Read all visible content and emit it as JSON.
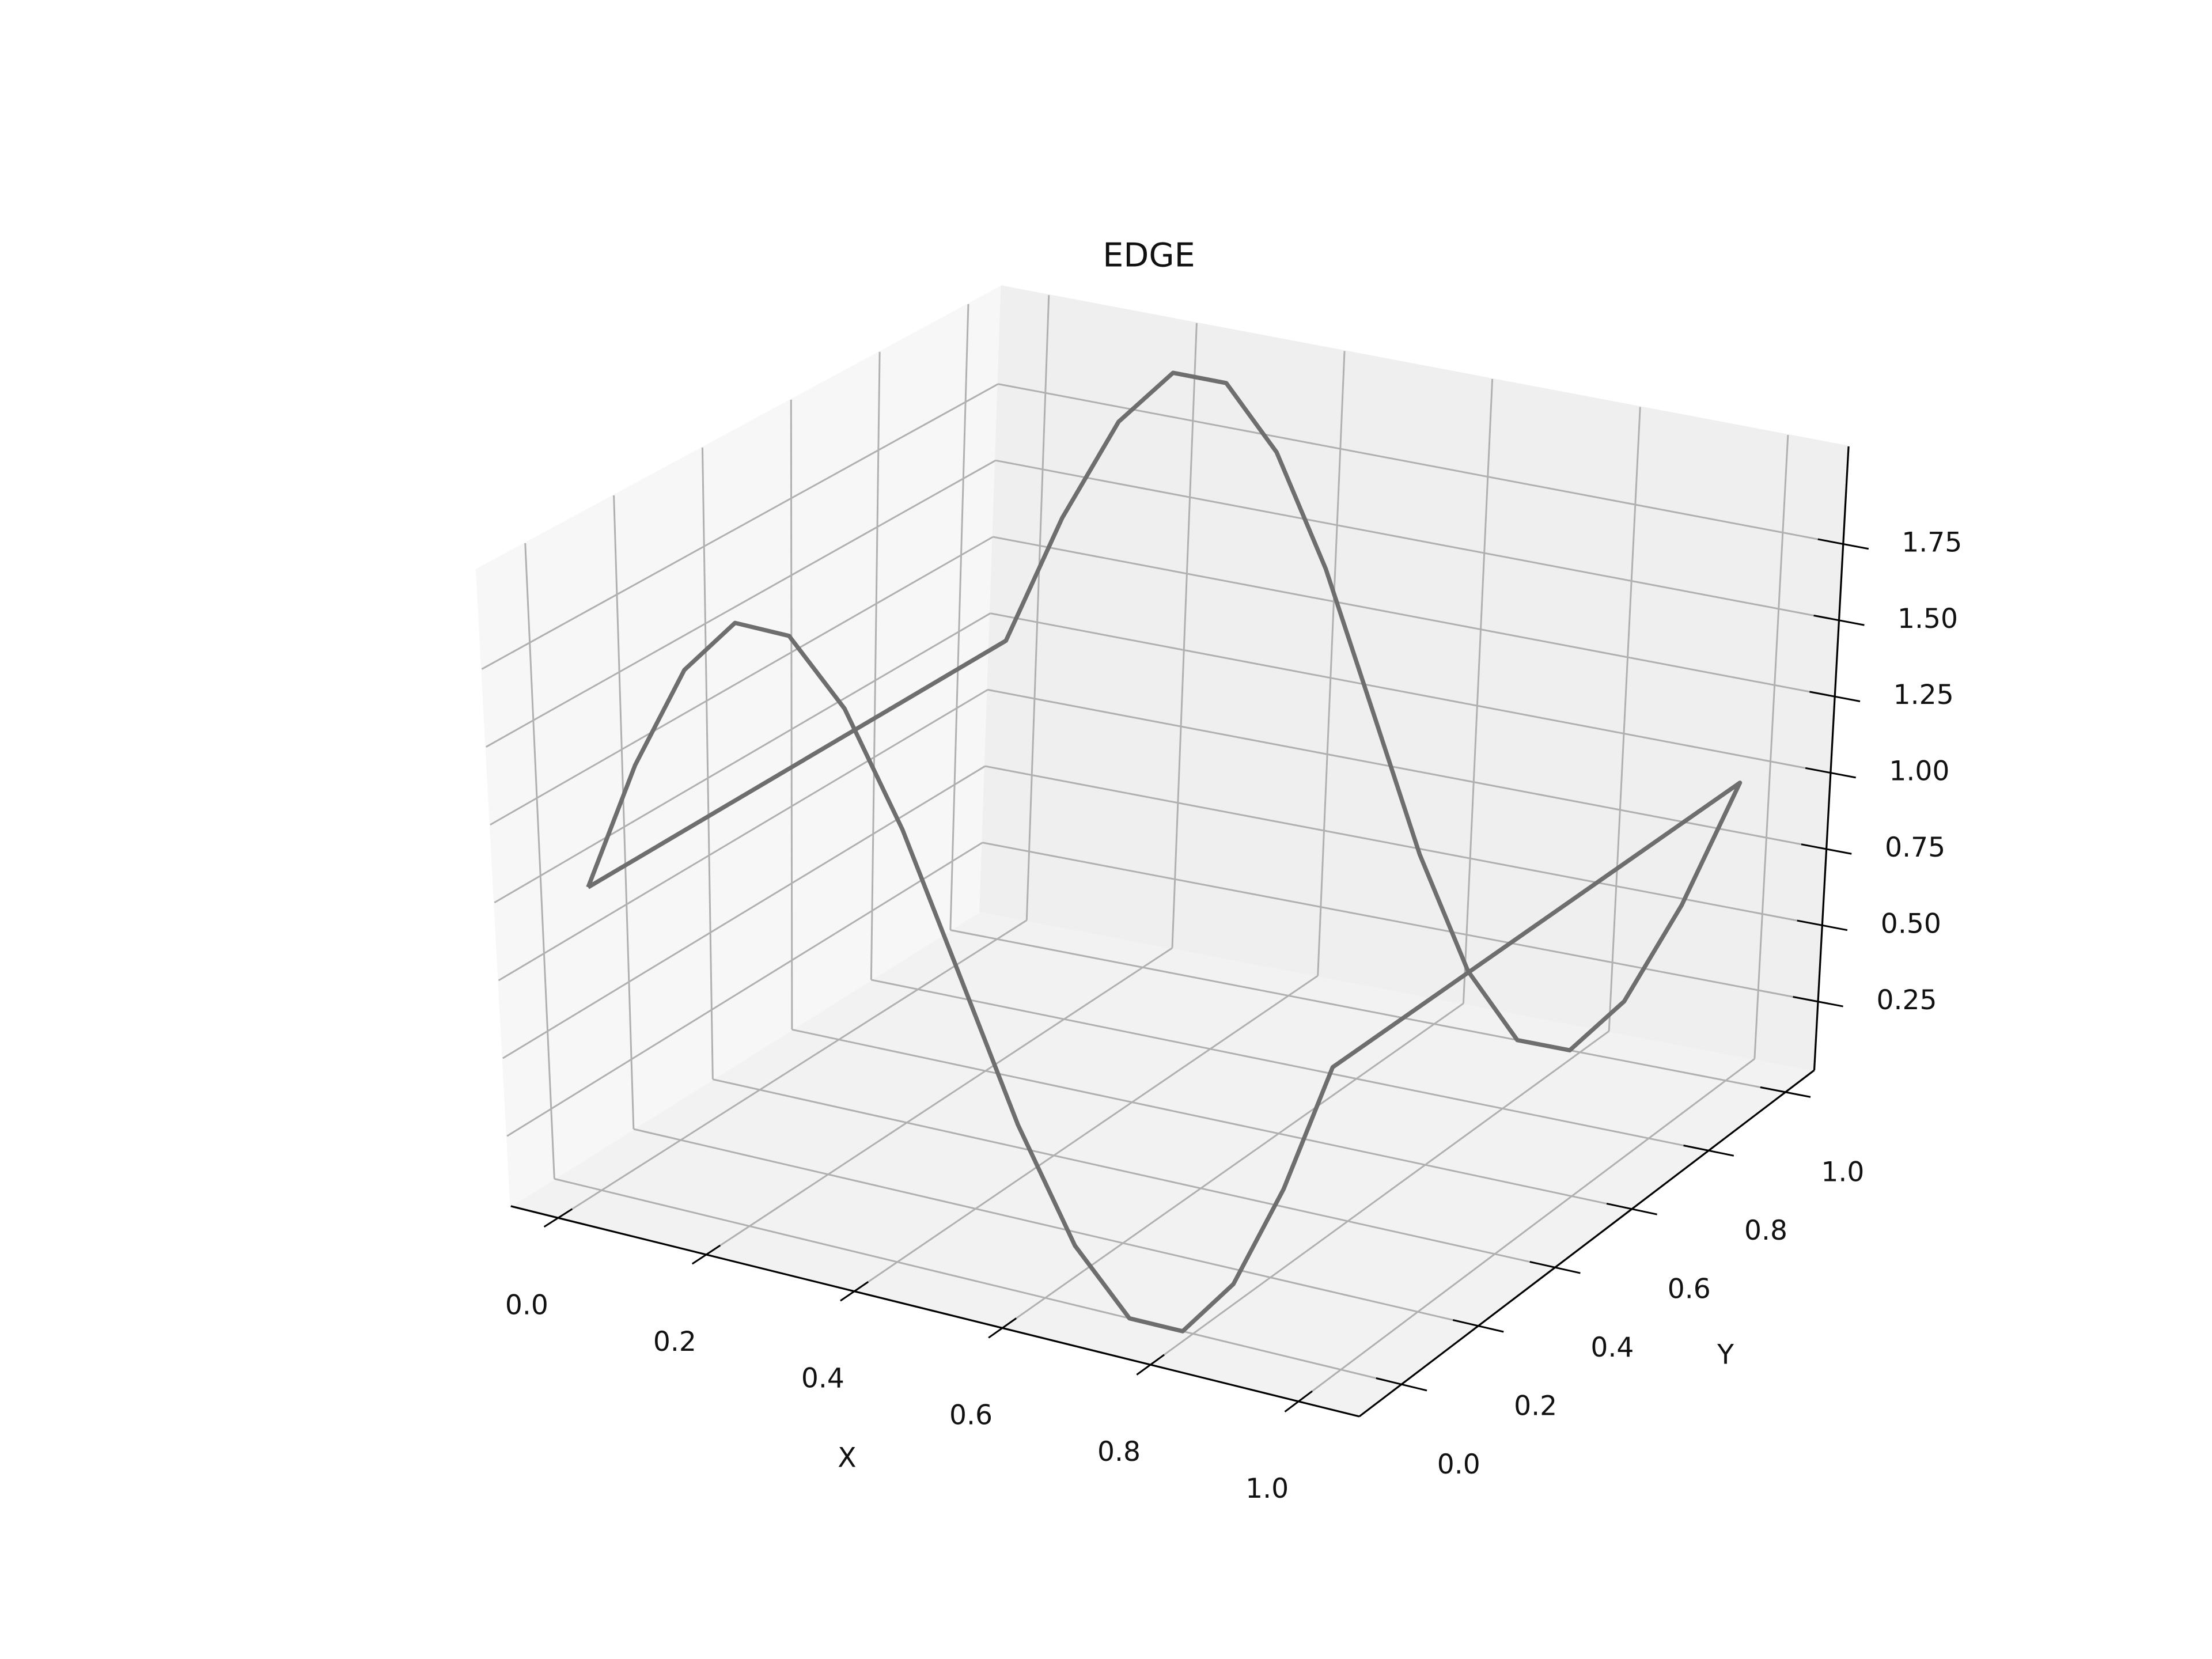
{
  "chart_data": {
    "type": "line3d",
    "title": "EDGE",
    "xlabel": "X",
    "ylabel": "Y",
    "x": [
      0,
      0.071,
      0.143,
      0.214,
      0.286,
      0.357,
      0.429,
      0.5,
      0.571,
      0.643,
      0.714,
      0.786,
      0.857,
      0.929,
      1,
      1,
      0.929,
      0.857,
      0.786,
      0.714,
      0.643,
      0.571,
      0.5,
      0.429,
      0.357,
      0.286,
      0.214,
      0.143,
      0.071,
      0,
      0
    ],
    "y": [
      0,
      0,
      0,
      0,
      0,
      0,
      0,
      0,
      0,
      0,
      0,
      0,
      0,
      0,
      0,
      1,
      1,
      1,
      1,
      1,
      1,
      1,
      1,
      1,
      1,
      1,
      1,
      1,
      1,
      1,
      0
    ],
    "z": [
      1,
      1.434,
      1.782,
      1.975,
      1.975,
      1.782,
      1.434,
      1,
      0.566,
      0.218,
      0.025,
      0.025,
      0.218,
      0.566,
      1,
      1,
      0.566,
      0.218,
      0.025,
      0.025,
      0.218,
      0.566,
      1,
      1.434,
      1.782,
      1.975,
      1.975,
      1.782,
      1.434,
      1,
      1
    ],
    "color": "#6e6e6e",
    "xlim": [
      -0.064,
      1.082
    ],
    "ylim": [
      -0.11,
      1.075
    ],
    "zlim": [
      0.025,
      2.07
    ],
    "xticks": [
      {
        "value": 0,
        "label": "0.0"
      },
      0.2,
      0.4,
      0.6,
      0.8,
      {
        "value": 1,
        "label": "1.0"
      }
    ],
    "yticks": [
      {
        "value": 0,
        "label": "0.0"
      },
      0.2,
      0.4,
      0.6,
      0.8,
      {
        "value": 1,
        "label": "1.0"
      }
    ],
    "zticks": [
      0.25,
      {
        "value": 0.5,
        "label": "0.50"
      },
      0.75,
      {
        "value": 1,
        "label": "1.00"
      },
      1.25,
      {
        "value": 1.5,
        "label": "1.50"
      },
      1.75
    ],
    "grid": true
  }
}
